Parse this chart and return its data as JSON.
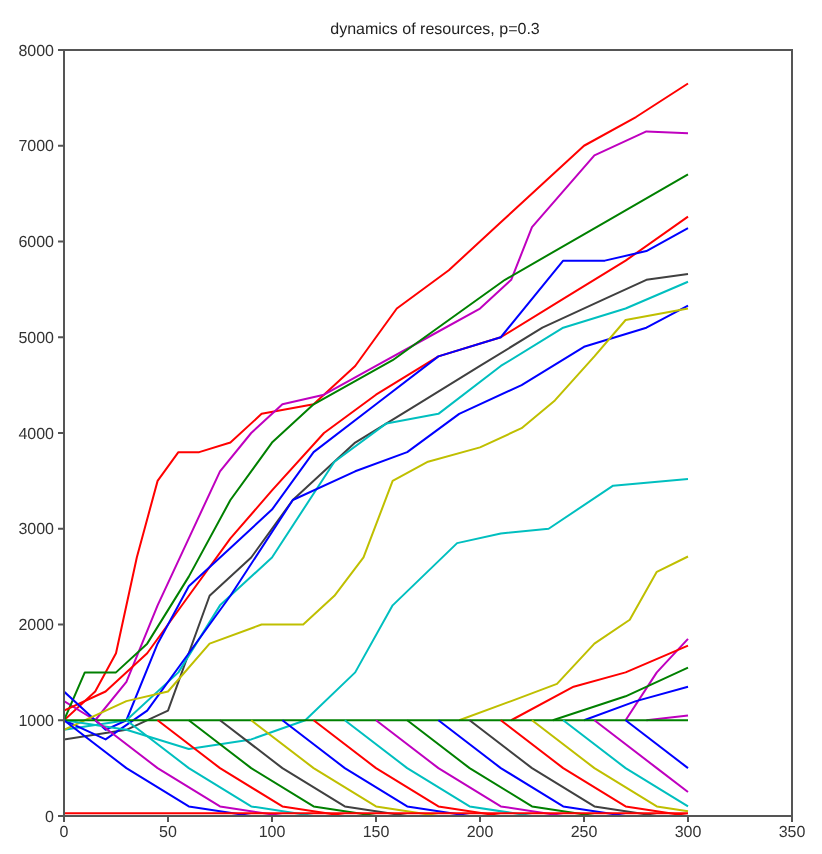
{
  "chart_data": {
    "type": "line",
    "title": "dynamics of resources, p=0.3",
    "xlim": [
      0,
      350
    ],
    "xticks": [
      0,
      50,
      100,
      150,
      200,
      250,
      300,
      350
    ],
    "ylim": [
      0,
      8000
    ],
    "yticks": [
      0,
      1000,
      2000,
      3000,
      4000,
      5000,
      6000,
      7000,
      8000
    ],
    "marker": "none",
    "line_style": "solid",
    "series": [
      {
        "color": "#ff0000",
        "x": [
          0,
          15,
          25,
          35,
          45,
          55,
          65,
          80,
          95,
          120,
          140,
          160,
          185,
          210,
          230,
          250,
          275,
          300
        ],
        "values": [
          1000,
          1300,
          1700,
          2700,
          3500,
          3800,
          3800,
          3900,
          4200,
          4300,
          4700,
          5300,
          5700,
          6200,
          6600,
          7000,
          7300,
          7650
        ]
      },
      {
        "color": "#bf00bf",
        "x": [
          0,
          15,
          30,
          45,
          60,
          75,
          90,
          105,
          125,
          150,
          175,
          200,
          215,
          225,
          255,
          280,
          300
        ],
        "values": [
          1200,
          1000,
          1400,
          2200,
          2900,
          3600,
          4000,
          4300,
          4400,
          4700,
          5000,
          5300,
          5600,
          6150,
          6900,
          7150,
          7130
        ]
      },
      {
        "color": "#008000",
        "x": [
          0,
          10,
          25,
          40,
          60,
          80,
          100,
          120,
          158,
          212,
          260,
          300
        ],
        "values": [
          1000,
          1500,
          1500,
          1800,
          2500,
          3300,
          3900,
          4300,
          4760,
          5600,
          6200,
          6700
        ]
      },
      {
        "color": "#ff0000",
        "x": [
          0,
          20,
          40,
          60,
          80,
          100,
          125,
          150,
          180,
          210,
          240,
          270,
          300
        ],
        "values": [
          1100,
          1300,
          1700,
          2300,
          2900,
          3400,
          4000,
          4400,
          4800,
          5000,
          5400,
          5800,
          6260
        ]
      },
      {
        "color": "#0000ff",
        "x": [
          0,
          20,
          30,
          45,
          60,
          80,
          100,
          120,
          150,
          180,
          210,
          240,
          260,
          280,
          300
        ],
        "values": [
          1300,
          900,
          1000,
          1800,
          2400,
          2800,
          3200,
          3800,
          4300,
          4800,
          5000,
          5800,
          5800,
          5900,
          6140
        ]
      },
      {
        "color": "#404040",
        "x": [
          0,
          30,
          50,
          70,
          90,
          110,
          140,
          170,
          200,
          230,
          260,
          280,
          300
        ],
        "values": [
          800,
          900,
          1100,
          2300,
          2700,
          3300,
          3900,
          4300,
          4700,
          5100,
          5400,
          5600,
          5660
        ]
      },
      {
        "color": "#00bfbf",
        "x": [
          0,
          30,
          55,
          75,
          100,
          130,
          155,
          180,
          210,
          240,
          270,
          300
        ],
        "values": [
          900,
          1000,
          1500,
          2200,
          2700,
          3700,
          4100,
          4200,
          4700,
          5100,
          5300,
          5580
        ]
      },
      {
        "color": "#0000ff",
        "x": [
          0,
          20,
          40,
          60,
          80,
          110,
          140,
          165,
          190,
          220,
          250,
          280,
          300
        ],
        "values": [
          1000,
          800,
          1100,
          1700,
          2300,
          3300,
          3600,
          3800,
          4200,
          4500,
          4900,
          5100,
          5330
        ]
      },
      {
        "color": "#bfbf00",
        "x": [
          0,
          30,
          50,
          70,
          95,
          115,
          130,
          144,
          158,
          175,
          200,
          220,
          236,
          255,
          270,
          300
        ],
        "values": [
          900,
          1200,
          1300,
          1800,
          2000,
          2000,
          2300,
          2700,
          3500,
          3700,
          3850,
          4050,
          4340,
          4800,
          5180,
          5300
        ]
      },
      {
        "color": "#00bfbf",
        "x": [
          0,
          30,
          60,
          90,
          116,
          140,
          158,
          189,
          210,
          233,
          264,
          300
        ],
        "values": [
          1000,
          900,
          700,
          800,
          1000,
          1500,
          2200,
          2850,
          2950,
          3000,
          3450,
          3520
        ]
      },
      {
        "color": "#bfbf00",
        "x": [
          190,
          215,
          237,
          255,
          272,
          285,
          300
        ],
        "values": [
          1000,
          1200,
          1380,
          1800,
          2050,
          2550,
          2710
        ]
      },
      {
        "color": "#bf00bf",
        "x": [
          270,
          285,
          300
        ],
        "values": [
          1000,
          1500,
          1850
        ]
      },
      {
        "color": "#ff0000",
        "x": [
          215,
          245,
          270,
          300
        ],
        "values": [
          1000,
          1350,
          1500,
          1780
        ]
      },
      {
        "color": "#008000",
        "x": [
          235,
          270,
          300
        ],
        "values": [
          1000,
          1250,
          1550
        ]
      },
      {
        "color": "#0000ff",
        "x": [
          250,
          275,
          300
        ],
        "values": [
          1000,
          1200,
          1350
        ]
      },
      {
        "color": "#bf00bf",
        "x": [
          280,
          300
        ],
        "values": [
          1000,
          1050
        ]
      },
      {
        "color": "#008000",
        "x": [
          0,
          300
        ],
        "values": [
          1000,
          1000
        ]
      },
      {
        "color": "#0000ff",
        "x": [
          0,
          30,
          60,
          90
        ],
        "values": [
          1000,
          500,
          100,
          0
        ]
      },
      {
        "color": "#bf00bf",
        "x": [
          15,
          45,
          75,
          105
        ],
        "values": [
          1000,
          500,
          100,
          0
        ]
      },
      {
        "color": "#00bfbf",
        "x": [
          30,
          60,
          90,
          120
        ],
        "values": [
          1000,
          500,
          100,
          0
        ]
      },
      {
        "color": "#ff0000",
        "x": [
          45,
          75,
          105,
          135
        ],
        "values": [
          1000,
          500,
          100,
          0
        ]
      },
      {
        "color": "#008000",
        "x": [
          60,
          90,
          120,
          150
        ],
        "values": [
          1000,
          500,
          100,
          0
        ]
      },
      {
        "color": "#404040",
        "x": [
          75,
          105,
          135,
          165
        ],
        "values": [
          1000,
          500,
          100,
          0
        ]
      },
      {
        "color": "#bfbf00",
        "x": [
          90,
          120,
          150,
          180
        ],
        "values": [
          1000,
          500,
          100,
          0
        ]
      },
      {
        "color": "#0000ff",
        "x": [
          105,
          135,
          165,
          195
        ],
        "values": [
          1000,
          500,
          100,
          0
        ]
      },
      {
        "color": "#ff0000",
        "x": [
          120,
          150,
          180,
          210
        ],
        "values": [
          1000,
          500,
          100,
          0
        ]
      },
      {
        "color": "#00bfbf",
        "x": [
          135,
          165,
          195,
          225
        ],
        "values": [
          1000,
          500,
          100,
          0
        ]
      },
      {
        "color": "#bf00bf",
        "x": [
          150,
          180,
          210,
          240
        ],
        "values": [
          1000,
          500,
          100,
          0
        ]
      },
      {
        "color": "#008000",
        "x": [
          165,
          195,
          225,
          255
        ],
        "values": [
          1000,
          500,
          100,
          0
        ]
      },
      {
        "color": "#0000ff",
        "x": [
          180,
          210,
          240,
          270
        ],
        "values": [
          1000,
          500,
          100,
          0
        ]
      },
      {
        "color": "#404040",
        "x": [
          195,
          225,
          255,
          285
        ],
        "values": [
          1000,
          500,
          100,
          0
        ]
      },
      {
        "color": "#ff0000",
        "x": [
          210,
          240,
          270,
          300
        ],
        "values": [
          1000,
          500,
          100,
          0
        ]
      },
      {
        "color": "#bfbf00",
        "x": [
          225,
          255,
          285,
          300
        ],
        "values": [
          1000,
          500,
          100,
          50
        ]
      },
      {
        "color": "#00bfbf",
        "x": [
          240,
          270,
          300
        ],
        "values": [
          1000,
          500,
          100
        ]
      },
      {
        "color": "#bf00bf",
        "x": [
          255,
          285,
          300
        ],
        "values": [
          1000,
          500,
          250
        ]
      },
      {
        "color": "#0000ff",
        "x": [
          270,
          300
        ],
        "values": [
          1000,
          500
        ]
      },
      {
        "color": "#ff0000",
        "x": [
          0,
          300
        ],
        "values": [
          30,
          30
        ]
      }
    ]
  }
}
